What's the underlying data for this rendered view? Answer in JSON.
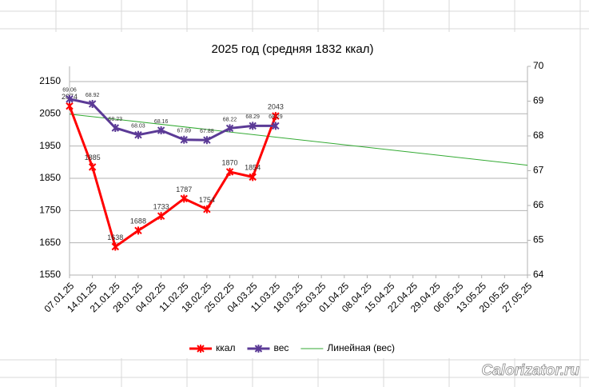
{
  "chart_data": {
    "type": "line",
    "title": "2025 год (средняя 1832 ккал)",
    "categories": [
      "07.01.25",
      "14.01.25",
      "21.01.25",
      "28.01.25",
      "04.02.25",
      "11.02.25",
      "18.02.25",
      "25.02.25",
      "04.03.25",
      "11.03.25",
      "18.03.25",
      "25.03.25",
      "01.04.25",
      "08.04.25",
      "15.04.25",
      "22.04.25",
      "29.04.25",
      "06.05.25",
      "13.05.25",
      "20.05.25",
      "27.05.25"
    ],
    "series": [
      {
        "name": "ккал",
        "color": "#ff0000",
        "axis": "y",
        "values": [
          2074,
          1885,
          1638,
          1688,
          1733,
          1787,
          1754,
          1870,
          1854,
          2043,
          null,
          null,
          null,
          null,
          null,
          null,
          null,
          null,
          null,
          null,
          null
        ]
      },
      {
        "name": "вес",
        "color": "#5b3a96",
        "axis": "y2",
        "values": [
          69.06,
          68.92,
          68.23,
          68.03,
          68.16,
          67.89,
          67.88,
          68.22,
          68.29,
          68.29,
          null,
          null,
          null,
          null,
          null,
          null,
          null,
          null,
          null,
          null,
          null
        ],
        "trendline": {
          "name": "Линейная (вес)",
          "color": "#33aa33"
        }
      }
    ],
    "ylim": [
      1550,
      2197
    ],
    "yticks": [
      1550,
      1650,
      1750,
      1850,
      1950,
      2050,
      2150
    ],
    "y2lim": [
      64,
      70
    ],
    "y2ticks": [
      64,
      65,
      66,
      67,
      68,
      69,
      70
    ],
    "grid": true,
    "data_labels": true,
    "legend": "bottom",
    "watermark": "Calorizator.ru"
  }
}
